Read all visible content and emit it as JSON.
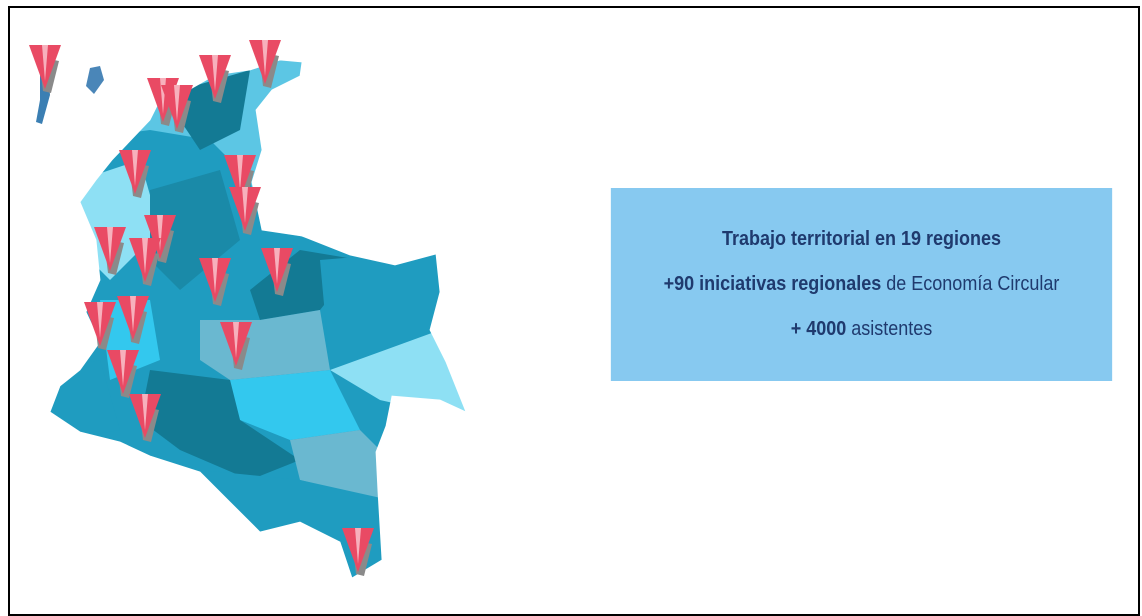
{
  "info_box": {
    "lines": [
      [
        {
          "text": "Trabajo territorial en 19 regiones",
          "bold": true
        }
      ],
      [
        {
          "text": "+90 iniciativas regionales",
          "bold": true
        },
        {
          "text": " de Economía Circular",
          "bold": false
        }
      ],
      [
        {
          "text": "+ 4000",
          "bold": true
        },
        {
          "text": " asistentes",
          "bold": false
        }
      ]
    ]
  }
}
